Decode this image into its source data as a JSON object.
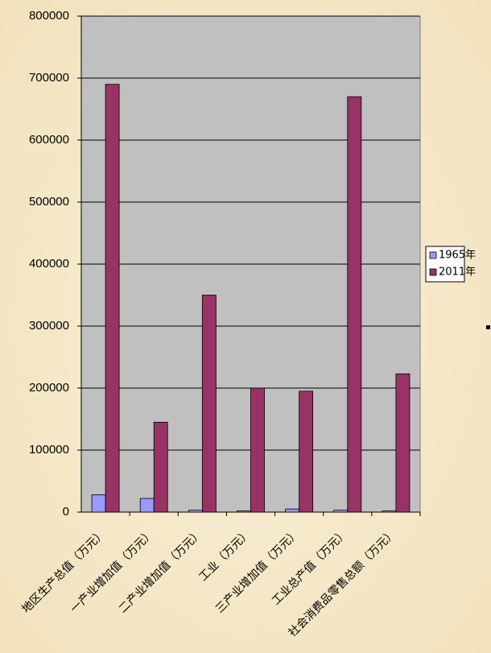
{
  "chart_data": {
    "type": "bar",
    "categories": [
      "地区生产总值（万元）",
      "一产业增加值（万元）",
      "二产业增加值（万元）",
      "工业（万元）",
      "三产业增加值（万元）",
      "工业总产值（万元）",
      "社会消费品零售总额（万元）"
    ],
    "series": [
      {
        "name": "1965年",
        "color": "#9999ff",
        "values": [
          28000,
          22000,
          3000,
          2000,
          5000,
          3000,
          2000
        ]
      },
      {
        "name": "2011年",
        "color": "#993366",
        "values": [
          690000,
          145000,
          350000,
          200000,
          195000,
          670000,
          223000
        ]
      }
    ],
    "ylim": [
      0,
      800000
    ],
    "yticks": [
      0,
      100000,
      200000,
      300000,
      400000,
      500000,
      600000,
      700000,
      800000
    ],
    "grid": true,
    "legend": "right"
  }
}
